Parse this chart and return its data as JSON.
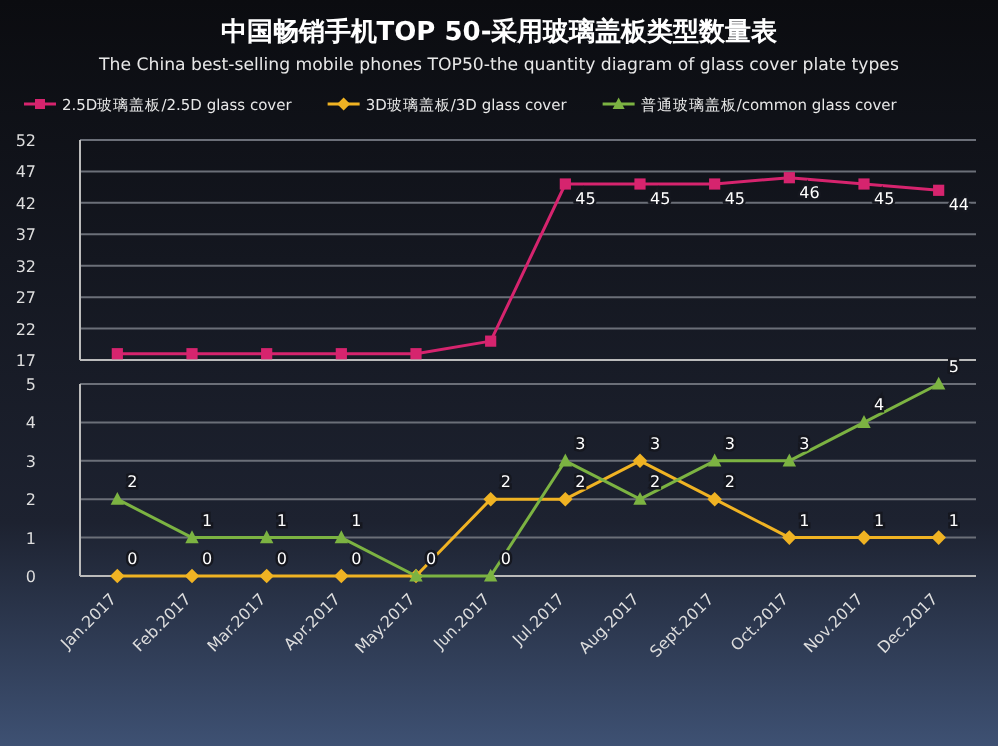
{
  "chart_data": [
    {
      "type": "line",
      "title": "中国畅销手机TOP 50-采用玻璃盖板类型数量表",
      "subtitle": "The China best-selling mobile phones TOP50-the quantity diagram of glass cover plate types",
      "categories": [
        null,
        null,
        null,
        null,
        null,
        null,
        null,
        null,
        null,
        null,
        null,
        null
      ],
      "series": [
        {
          "name": "2.5D玻璃盖板/2.5D glass cover",
          "color": "#d6246e",
          "marker": "square",
          "values": [
            18,
            18,
            18,
            18,
            18,
            20,
            45,
            45,
            45,
            46,
            45,
            44
          ],
          "value_labels": [
            null,
            null,
            null,
            null,
            null,
            null,
            "45",
            "45",
            "45",
            "46",
            "45",
            "44"
          ]
        }
      ],
      "ylim": [
        17,
        52
      ],
      "yticks": [
        17,
        22,
        27,
        32,
        37,
        42,
        47,
        52
      ],
      "grid": "y",
      "legend": "top",
      "tick_labels": "y"
    },
    {
      "type": "line",
      "categories": [
        "Jan.2017",
        "Feb.2017",
        "Mar.2017",
        "Apr.2017",
        "May.2017",
        "Jun.2017",
        "Jul.2017",
        "Aug.2017",
        "Sept.2017",
        "Oct.2017",
        "Nov.2017",
        "Dec.2017"
      ],
      "series": [
        {
          "name": "3D玻璃盖板/3D glass cover",
          "color": "#f0b323",
          "marker": "diamond",
          "values": [
            0,
            0,
            0,
            0,
            0,
            2,
            2,
            3,
            2,
            1,
            1,
            1
          ],
          "value_labels": [
            "0",
            "0",
            "0",
            "0",
            "0",
            "2",
            "2",
            "3",
            "2",
            "1",
            "1",
            "1"
          ]
        },
        {
          "name": "普通玻璃盖板/common glass cover",
          "color": "#7cb342",
          "marker": "triangle",
          "values": [
            2,
            1,
            1,
            1,
            0,
            0,
            3,
            2,
            3,
            3,
            4,
            5
          ],
          "value_labels": [
            "2",
            "1",
            "1",
            "1",
            "0",
            "0",
            "3",
            "2",
            "3",
            "3",
            "4",
            "5"
          ]
        }
      ],
      "ylim": [
        0,
        5
      ],
      "yticks": [
        0,
        1,
        2,
        3,
        4,
        5
      ],
      "grid": "y",
      "legend": "top"
    }
  ]
}
